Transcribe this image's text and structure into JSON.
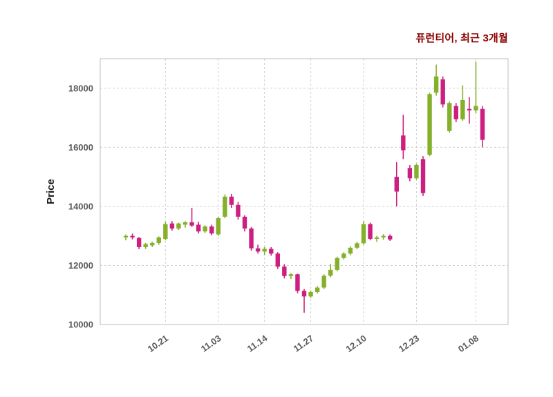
{
  "chart_data": {
    "type": "candlestick",
    "title": "퓨런티어, 최근 3개월",
    "ylabel": "Price",
    "ylim": [
      10000,
      19000
    ],
    "yticks": [
      10000,
      12000,
      14000,
      16000,
      18000
    ],
    "xtick_labels": [
      "10.21",
      "11.03",
      "11.14",
      "11.27",
      "12.10",
      "12.23",
      "01.08"
    ],
    "xtick_indices": [
      6,
      14,
      21,
      28,
      36,
      44,
      53
    ],
    "grid": true,
    "legend": "none",
    "colors": {
      "up": "#85b02a",
      "down": "#cc1f7f",
      "grid": "#cfcfcf",
      "border": "#bcbcbc",
      "tick_label": "#595959",
      "axis_label": "#1a1a1a",
      "title": "#8b0000",
      "background": "#ffffff"
    },
    "candles_format": [
      "open",
      "high",
      "low",
      "close"
    ],
    "candles": [
      [
        12950,
        13050,
        12850,
        13000
      ],
      [
        13000,
        13080,
        12880,
        12950
      ],
      [
        12930,
        12960,
        12550,
        12620
      ],
      [
        12620,
        12760,
        12560,
        12720
      ],
      [
        12680,
        12800,
        12620,
        12760
      ],
      [
        12760,
        12980,
        12700,
        12950
      ],
      [
        12900,
        13480,
        12850,
        13400
      ],
      [
        13420,
        13500,
        13180,
        13250
      ],
      [
        13250,
        13450,
        13200,
        13420
      ],
      [
        13380,
        13500,
        13280,
        13460
      ],
      [
        13460,
        13950,
        13300,
        13350
      ],
      [
        13380,
        13480,
        13080,
        13150
      ],
      [
        13150,
        13360,
        13100,
        13320
      ],
      [
        13320,
        13380,
        13020,
        13080
      ],
      [
        13050,
        13650,
        13000,
        13600
      ],
      [
        13650,
        14400,
        13600,
        14330
      ],
      [
        14330,
        14420,
        13950,
        14050
      ],
      [
        14050,
        14150,
        13550,
        13650
      ],
      [
        13650,
        13700,
        13150,
        13250
      ],
      [
        13250,
        13300,
        12500,
        12580
      ],
      [
        12580,
        12700,
        12400,
        12470
      ],
      [
        12470,
        12620,
        12350,
        12560
      ],
      [
        12560,
        12620,
        12330,
        12400
      ],
      [
        12400,
        12450,
        11880,
        11960
      ],
      [
        11960,
        12040,
        11560,
        11640
      ],
      [
        11640,
        11740,
        11540,
        11700
      ],
      [
        11700,
        11720,
        11060,
        11140
      ],
      [
        11140,
        11200,
        10400,
        10950
      ],
      [
        10950,
        11150,
        10900,
        11100
      ],
      [
        11100,
        11300,
        11050,
        11250
      ],
      [
        11250,
        11700,
        11200,
        11650
      ],
      [
        11650,
        12050,
        11600,
        11850
      ],
      [
        11850,
        12300,
        11800,
        12250
      ],
      [
        12250,
        12450,
        12200,
        12400
      ],
      [
        12400,
        12650,
        12350,
        12600
      ],
      [
        12600,
        12800,
        12550,
        12750
      ],
      [
        12750,
        13500,
        12700,
        13400
      ],
      [
        13400,
        13450,
        12850,
        12900
      ],
      [
        12900,
        13000,
        12800,
        12950
      ],
      [
        12950,
        13060,
        12870,
        13000
      ],
      [
        13000,
        13050,
        12830,
        12880
      ],
      [
        15000,
        15500,
        14000,
        14500
      ],
      [
        16400,
        17100,
        15600,
        15900
      ],
      [
        15300,
        15400,
        14850,
        14950
      ],
      [
        14950,
        15450,
        14900,
        15400
      ],
      [
        15600,
        15700,
        14350,
        14450
      ],
      [
        15750,
        17850,
        15700,
        17800
      ],
      [
        17850,
        18800,
        17750,
        18400
      ],
      [
        18300,
        18400,
        17350,
        17450
      ],
      [
        16550,
        17550,
        16500,
        17500
      ],
      [
        17400,
        17500,
        16850,
        16950
      ],
      [
        16950,
        18100,
        16900,
        17600
      ],
      [
        17300,
        17700,
        16800,
        17250
      ],
      [
        17250,
        18900,
        17150,
        17400
      ],
      [
        17300,
        17400,
        16000,
        16250
      ]
    ]
  }
}
